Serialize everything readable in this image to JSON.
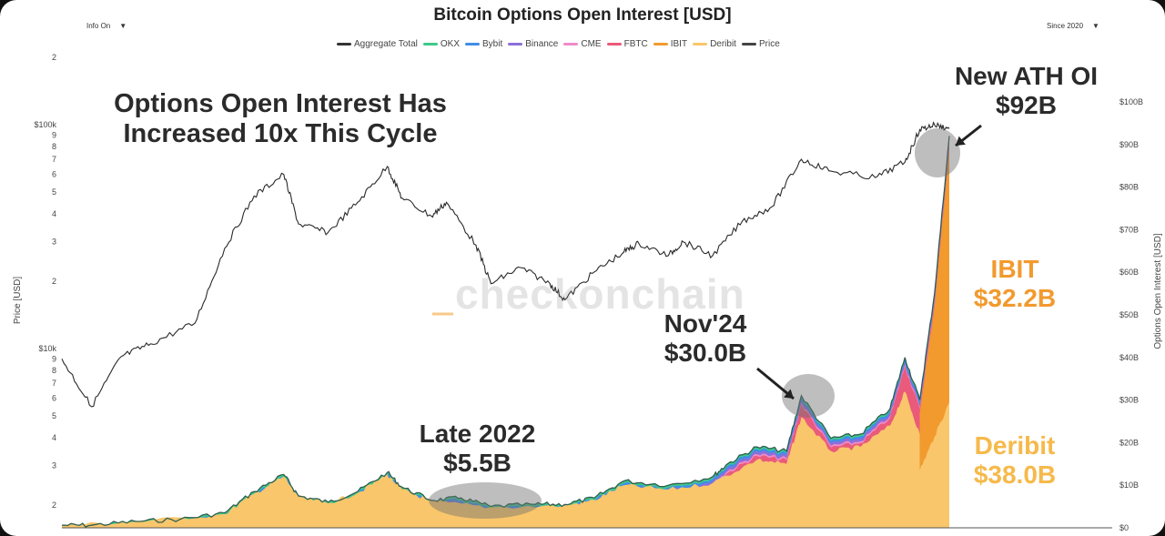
{
  "controls": {
    "left_toggle": "Info On",
    "right_range": "Since 2020"
  },
  "chart_data": {
    "type": "area",
    "title": "Bitcoin Options Open Interest [USD]",
    "legend": [
      {
        "name": "Aggregate Total",
        "color": "#333333"
      },
      {
        "name": "OKX",
        "color": "#3ec98a"
      },
      {
        "name": "Bybit",
        "color": "#3f8ee8"
      },
      {
        "name": "Binance",
        "color": "#8c6fd9"
      },
      {
        "name": "CME",
        "color": "#f08ac8"
      },
      {
        "name": "FBTC",
        "color": "#ea5a7a"
      },
      {
        "name": "IBIT",
        "color": "#f29a2e"
      },
      {
        "name": "Deribit",
        "color": "#f9c66b"
      },
      {
        "name": "Price",
        "color": "#444444"
      }
    ],
    "left_axis": {
      "label": "Price [USD]",
      "scale": "log",
      "ticks": [
        "2",
        "$100k",
        "9",
        "8",
        "7",
        "6",
        "5",
        "4",
        "3",
        "2",
        "$10k",
        "9",
        "8",
        "7",
        "6",
        "5",
        "4",
        "3",
        "2"
      ]
    },
    "right_axis": {
      "label": "Options Open Interest [USD]",
      "ylim": [
        0,
        100
      ],
      "unit": "B USD",
      "ticks": [
        "$100B",
        "$90B",
        "$80B",
        "$70B",
        "$60B",
        "$50B",
        "$40B",
        "$30B",
        "$20B",
        "$10B",
        "$0"
      ]
    },
    "x_range": [
      "2020-01",
      "2025-01"
    ],
    "series": [
      {
        "name": "Price",
        "scale": "log",
        "points": [
          [
            "2020-01",
            9000
          ],
          [
            "2020-03",
            5500
          ],
          [
            "2020-05",
            9200
          ],
          [
            "2020-07",
            10500
          ],
          [
            "2020-10",
            13000
          ],
          [
            "2020-12",
            28000
          ],
          [
            "2021-02",
            48000
          ],
          [
            "2021-04",
            60000
          ],
          [
            "2021-05",
            36000
          ],
          [
            "2021-07",
            33000
          ],
          [
            "2021-09",
            45000
          ],
          [
            "2021-11",
            65000
          ],
          [
            "2021-12",
            47000
          ],
          [
            "2022-02",
            39000
          ],
          [
            "2022-03",
            45000
          ],
          [
            "2022-05",
            29000
          ],
          [
            "2022-06",
            19500
          ],
          [
            "2022-08",
            23000
          ],
          [
            "2022-10",
            19500
          ],
          [
            "2022-11",
            16500
          ],
          [
            "2023-01",
            22000
          ],
          [
            "2023-03",
            27000
          ],
          [
            "2023-04",
            29500
          ],
          [
            "2023-06",
            26000
          ],
          [
            "2023-07",
            30000
          ],
          [
            "2023-09",
            26000
          ],
          [
            "2023-11",
            37000
          ],
          [
            "2024-01",
            43000
          ],
          [
            "2024-03",
            70000
          ],
          [
            "2024-05",
            62000
          ],
          [
            "2024-08",
            58000
          ],
          [
            "2024-10",
            68000
          ],
          [
            "2024-11",
            95000
          ],
          [
            "2024-12",
            100000
          ],
          [
            "2025-01",
            96000
          ]
        ]
      },
      {
        "name": "Aggregate Total",
        "points": [
          [
            "2020-01",
            0.6
          ],
          [
            "2020-03",
            0.6
          ],
          [
            "2020-06",
            1.5
          ],
          [
            "2020-09",
            2.0
          ],
          [
            "2020-12",
            3.5
          ],
          [
            "2021-02",
            8.5
          ],
          [
            "2021-04",
            12.5
          ],
          [
            "2021-05",
            7.5
          ],
          [
            "2021-07",
            6.0
          ],
          [
            "2021-09",
            8.5
          ],
          [
            "2021-11",
            13.0
          ],
          [
            "2021-12",
            9.5
          ],
          [
            "2022-02",
            6.5
          ],
          [
            "2022-04",
            7.0
          ],
          [
            "2022-06",
            5.0
          ],
          [
            "2022-09",
            5.5
          ],
          [
            "2022-11",
            5.5
          ],
          [
            "2023-01",
            7.0
          ],
          [
            "2023-03",
            11.0
          ],
          [
            "2023-06",
            10.0
          ],
          [
            "2023-09",
            12.0
          ],
          [
            "2023-10",
            15.0
          ],
          [
            "2023-12",
            19.0
          ],
          [
            "2024-02",
            18.0
          ],
          [
            "2024-03",
            31.0
          ],
          [
            "2024-05",
            21.0
          ],
          [
            "2024-07",
            22.0
          ],
          [
            "2024-09",
            28.0
          ],
          [
            "2024-10",
            40.0
          ],
          [
            "2024-11",
            30.0
          ],
          [
            "2024-12",
            55.0
          ],
          [
            "2025-01",
            92.0
          ]
        ]
      },
      {
        "name": "Deribit",
        "points": [
          [
            "2020-01",
            0.6
          ],
          [
            "2020-06",
            1.4
          ],
          [
            "2020-12",
            3.2
          ],
          [
            "2021-02",
            8.0
          ],
          [
            "2021-04",
            12.0
          ],
          [
            "2021-05",
            7.2
          ],
          [
            "2021-07",
            5.8
          ],
          [
            "2021-09",
            8.2
          ],
          [
            "2021-11",
            12.5
          ],
          [
            "2021-12",
            9.0
          ],
          [
            "2022-02",
            6.2
          ],
          [
            "2022-06",
            4.8
          ],
          [
            "2022-11",
            5.2
          ],
          [
            "2023-01",
            6.5
          ],
          [
            "2023-03",
            10.0
          ],
          [
            "2023-06",
            9.0
          ],
          [
            "2023-09",
            10.5
          ],
          [
            "2023-12",
            16.0
          ],
          [
            "2024-02",
            15.0
          ],
          [
            "2024-03",
            26.0
          ],
          [
            "2024-05",
            18.0
          ],
          [
            "2024-07",
            19.0
          ],
          [
            "2024-09",
            24.0
          ],
          [
            "2024-10",
            32.0
          ],
          [
            "2024-11",
            22.0
          ],
          [
            "2024-12",
            30.0
          ],
          [
            "2025-01",
            38.0
          ]
        ]
      },
      {
        "name": "IBIT",
        "points": [
          [
            "2024-11",
            2.0
          ],
          [
            "2024-12",
            18.0
          ],
          [
            "2025-01",
            32.2
          ]
        ]
      }
    ],
    "annotations": [
      {
        "id": "cycle",
        "text": [
          "Options Open Interest Has",
          "Increased 10x This Cycle"
        ]
      },
      {
        "id": "ath",
        "text": [
          "New ATH OI",
          "$92B"
        ],
        "value": 92
      },
      {
        "id": "nov",
        "text": [
          "Nov'24",
          "$30.0B"
        ],
        "value": 30.0
      },
      {
        "id": "late",
        "text": [
          "Late 2022",
          "$5.5B"
        ],
        "value": 5.5
      },
      {
        "id": "ibit",
        "text": [
          "IBIT",
          "$32.2B"
        ],
        "value": 32.2
      },
      {
        "id": "deribit",
        "text": [
          "Deribit",
          "$38.0B"
        ],
        "value": 38.0
      }
    ],
    "watermark": "checkonchain",
    "grid": false
  }
}
